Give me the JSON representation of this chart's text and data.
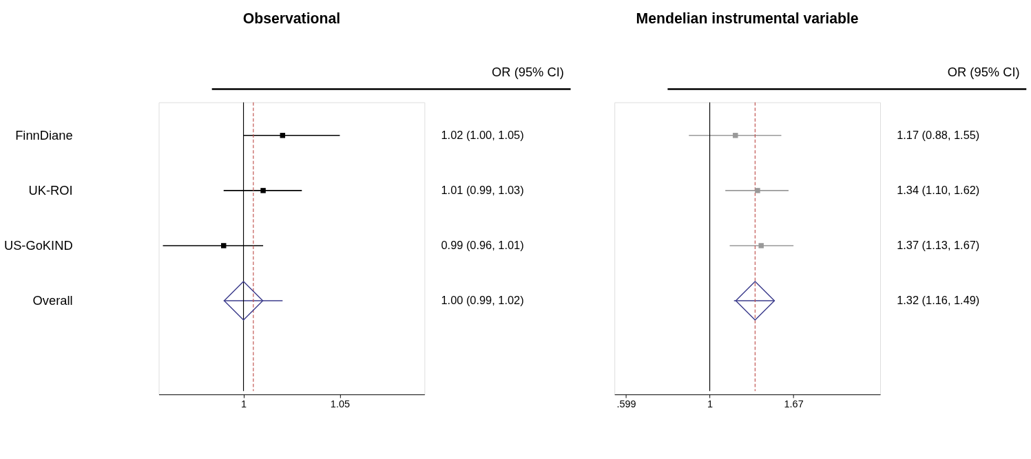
{
  "chart_data": [
    {
      "type": "scatter",
      "title": "Observational",
      "orientation": "horizontal",
      "log": "x",
      "categories": [
        "FinnDiane",
        "UK-ROI",
        "US-GoKIND",
        "Overall"
      ],
      "series": [
        {
          "marker": "square",
          "color": "#000000",
          "values": [
            1.02,
            1.01,
            0.99,
            null
          ],
          "errors": [
            [
              1.0,
              1.05
            ],
            [
              0.99,
              1.03
            ],
            [
              0.96,
              1.01
            ],
            null
          ]
        },
        {
          "marker": "diamond",
          "color": "#3c3c8c",
          "values": [
            null,
            null,
            null,
            1.0
          ],
          "errors": [
            null,
            null,
            null,
            [
              0.99,
              1.02
            ]
          ]
        }
      ],
      "value_labels": [
        "1.02 (1.00, 1.05)",
        "1.01 (0.99, 1.03)",
        "0.99 (0.96, 1.01)",
        "1.00 (0.99, 1.02)"
      ],
      "annotations": [
        "OR (95% CI)"
      ],
      "xlim": [
        0.958,
        1.096
      ],
      "xticks": [
        1,
        1.05
      ],
      "ref_lines": [
        {
          "axis": "x",
          "value": 1,
          "color": "#000000",
          "line_style": "solid"
        },
        {
          "axis": "x",
          "value": 1.005,
          "color": "#c0504d",
          "line_style": "dashed"
        }
      ],
      "grid": false
    },
    {
      "type": "scatter",
      "title": "Mendelian instrumental variable",
      "orientation": "horizontal",
      "log": "x",
      "categories": [
        null,
        null,
        null,
        null
      ],
      "series": [
        {
          "marker": "square",
          "color": "#999999",
          "values": [
            1.17,
            1.34,
            1.37,
            null
          ],
          "errors": [
            [
              0.88,
              1.55
            ],
            [
              1.1,
              1.62
            ],
            [
              1.13,
              1.67
            ],
            null
          ]
        },
        {
          "marker": "diamond",
          "color": "#3c3c8c",
          "values": [
            null,
            null,
            null,
            1.32
          ],
          "errors": [
            null,
            null,
            null,
            [
              1.16,
              1.49
            ]
          ]
        }
      ],
      "value_labels": [
        "1.17 (0.88, 1.55)",
        "1.34 (1.10, 1.62)",
        "1.37 (1.13, 1.67)",
        "1.32 (1.16, 1.49)"
      ],
      "annotations": [
        "OR (95% CI)"
      ],
      "xlim": [
        0.558,
        2.84
      ],
      "xticks": [
        {
          "value": 0.599,
          "label": ".599"
        },
        1,
        1.67
      ],
      "ref_lines": [
        {
          "axis": "x",
          "value": 1,
          "color": "#000000",
          "line_style": "solid"
        },
        {
          "axis": "x",
          "value": 1.32,
          "color": "#c0504d",
          "line_style": "dashed"
        }
      ],
      "grid": false
    }
  ]
}
